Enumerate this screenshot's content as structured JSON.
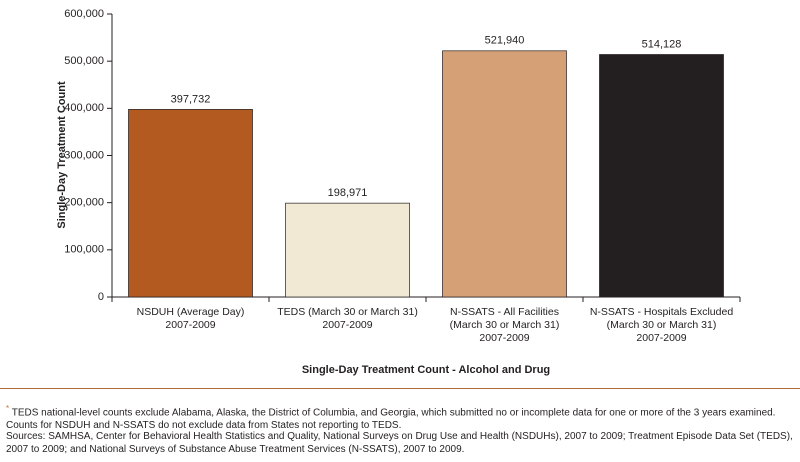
{
  "chart_data": {
    "type": "bar",
    "y_label": "Single-Day Treatment Count",
    "x_label": "Single-Day Treatment Count - Alcohol and Drug",
    "categories": [
      "NSDUH (Average Day)\n2007-2009",
      "TEDS (March 30 or March 31)\n2007-2009",
      "N-SSATS - All Facilities\n(March 30 or March 31)\n2007-2009",
      "N-SSATS - Hospitals Excluded\n(March 30 or March 31)\n2007-2009"
    ],
    "values": [
      397732,
      198971,
      521940,
      514128
    ],
    "value_labels": [
      "397,732",
      "198,971",
      "521,940",
      "514,128"
    ],
    "colors": [
      "#b35a20",
      "#f1e9d3",
      "#d6a077",
      "#231f20"
    ],
    "ylim": [
      0,
      600000
    ],
    "yticks": [
      0,
      {
        "value": 100000,
        "label": "100,000"
      },
      {
        "value": 200000,
        "label": "200,000"
      },
      {
        "value": 300000,
        "label": "300,000"
      },
      {
        "value": 400000,
        "label": "400,000"
      },
      {
        "value": 500000,
        "label": "500,000"
      },
      {
        "value": 600000,
        "label": "600,000"
      }
    ]
  },
  "notes": {
    "footnote_marker": "*",
    "footnote": "TEDS national-level counts exclude Alabama, Alaska, the District of Columbia, and Georgia, which submitted no or incomplete data for one or more of the 3 years examined. Counts for NSDUH and N-SSATS do not exclude data from States not reporting to TEDS.",
    "sources": "Sources: SAMHSA, Center for Behavioral Health Statistics and Quality, National Surveys on Drug Use and Health (NSDUHs), 2007 to 2009; Treatment Episode Data Set (TEDS), 2007 to 2009; and National Surveys of Substance Abuse Treatment Services (N-SSATS), 2007 to 2009."
  }
}
